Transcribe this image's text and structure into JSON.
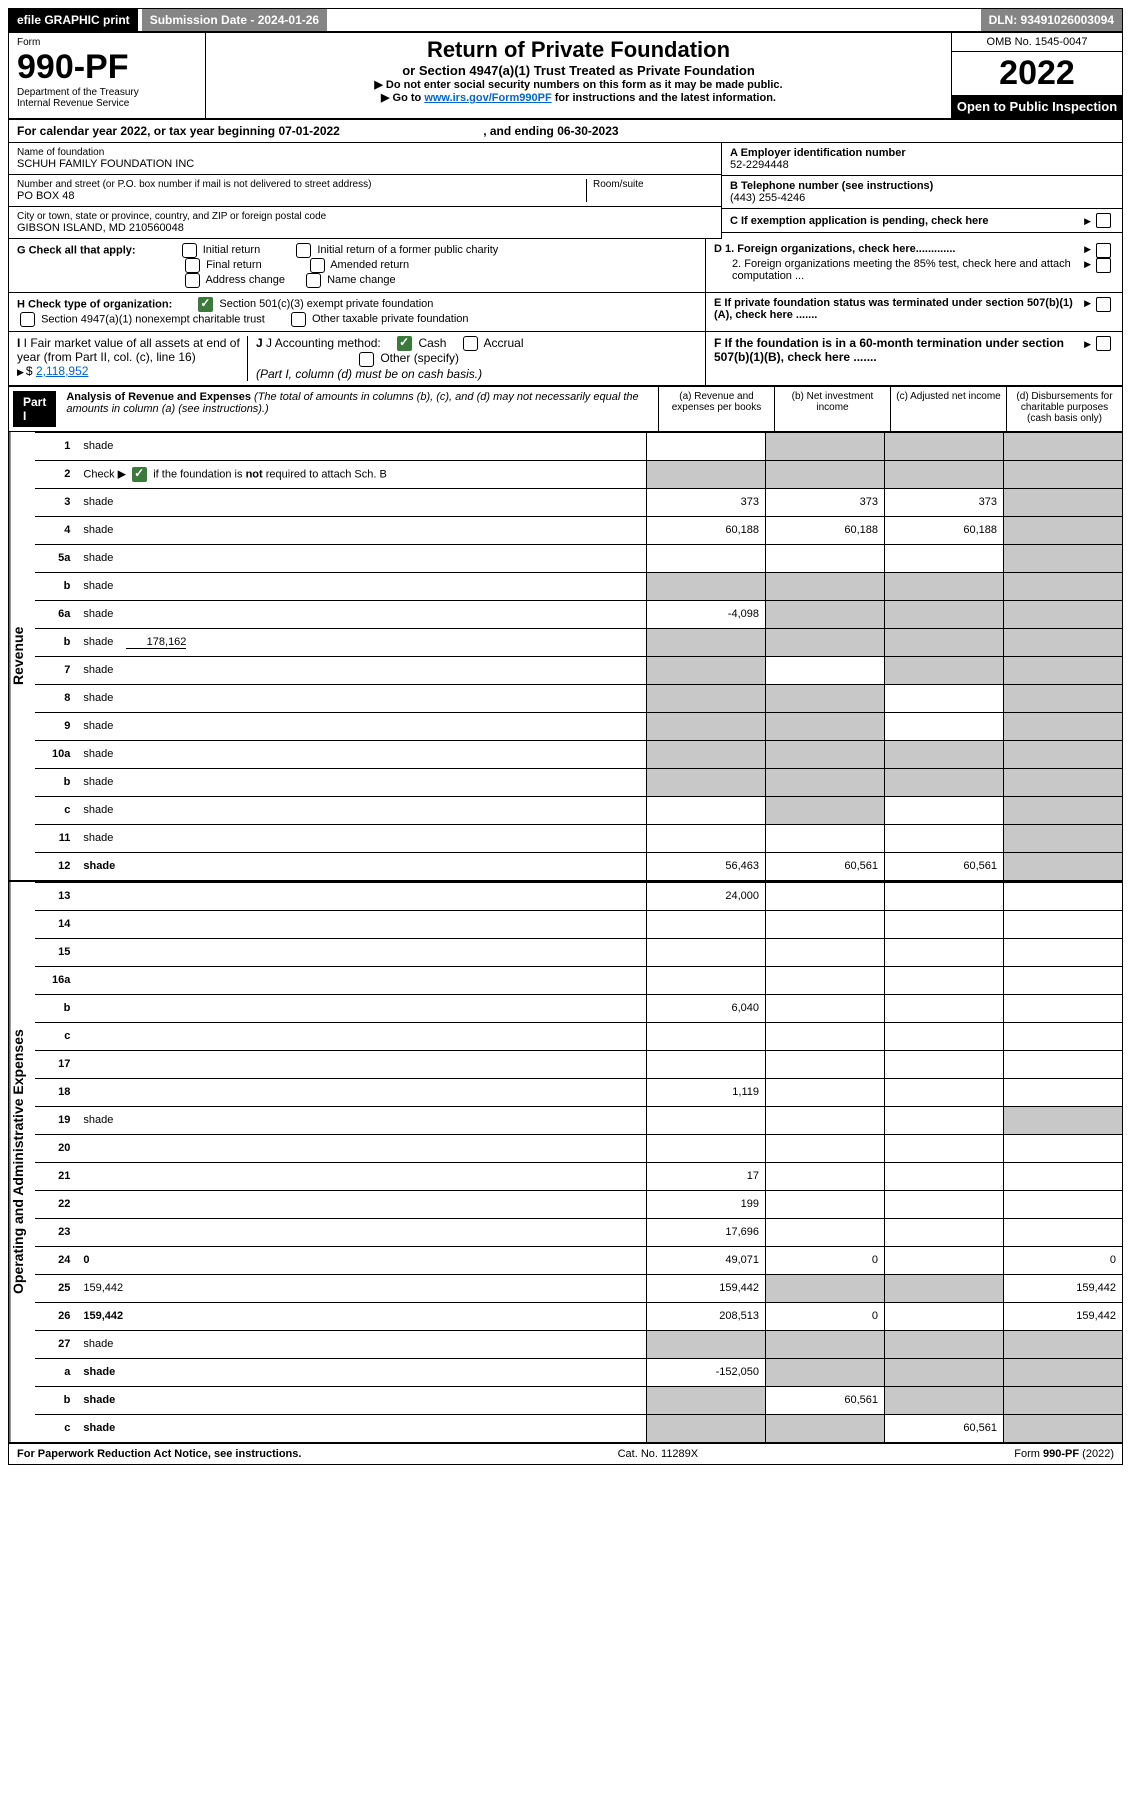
{
  "topbar": {
    "efile": "efile GRAPHIC print",
    "submission": "Submission Date - 2024-01-26",
    "dln": "DLN: 93491026003094"
  },
  "header": {
    "form_label": "Form",
    "form_number": "990-PF",
    "dept": "Department of the Treasury",
    "irs": "Internal Revenue Service",
    "title": "Return of Private Foundation",
    "subtitle": "or Section 4947(a)(1) Trust Treated as Private Foundation",
    "instr1": "▶ Do not enter social security numbers on this form as it may be made public.",
    "instr2_pre": "▶ Go to ",
    "instr2_link": "www.irs.gov/Form990PF",
    "instr2_post": " for instructions and the latest information.",
    "omb": "OMB No. 1545-0047",
    "year": "2022",
    "inspection": "Open to Public Inspection"
  },
  "calendar": {
    "text_pre": "For calendar year 2022, or tax year beginning ",
    "begin": "07-01-2022",
    "text_mid": " , and ending ",
    "end": "06-30-2023"
  },
  "foundation": {
    "name_label": "Name of foundation",
    "name": "SCHUH FAMILY FOUNDATION INC",
    "address_label": "Number and street (or P.O. box number if mail is not delivered to street address)",
    "address": "PO BOX 48",
    "room_label": "Room/suite",
    "city_label": "City or town, state or province, country, and ZIP or foreign postal code",
    "city": "GIBSON ISLAND, MD  210560048",
    "ein_label": "A Employer identification number",
    "ein": "52-2294448",
    "phone_label": "B Telephone number (see instructions)",
    "phone": "(443) 255-4246",
    "c_label": "C If exemption application is pending, check here",
    "d1_label": "D 1. Foreign organizations, check here.............",
    "d2_label": "2. Foreign organizations meeting the 85% test, check here and attach computation ...",
    "e_label": "E  If private foundation status was terminated under section 507(b)(1)(A), check here .......",
    "f_label": "F  If the foundation is in a 60-month termination under section 507(b)(1)(B), check here .......",
    "g_label": "G Check all that apply:",
    "g_initial": "Initial return",
    "g_initial_former": "Initial return of a former public charity",
    "g_final": "Final return",
    "g_amended": "Amended return",
    "g_address": "Address change",
    "g_name": "Name change",
    "h_label": "H Check type of organization:",
    "h_501c3": "Section 501(c)(3) exempt private foundation",
    "h_4947": "Section 4947(a)(1) nonexempt charitable trust",
    "h_other": "Other taxable private foundation",
    "i_label": "I Fair market value of all assets at end of year (from Part II, col. (c), line 16)",
    "i_value": "2,118,952",
    "j_label": "J Accounting method:",
    "j_cash": "Cash",
    "j_accrual": "Accrual",
    "j_other": "Other (specify)",
    "j_note": "(Part I, column (d) must be on cash basis.)"
  },
  "part1": {
    "header": "Part I",
    "title": "Analysis of Revenue and Expenses",
    "title_note": "(The total of amounts in columns (b), (c), and (d) may not necessarily equal the amounts in column (a) (see instructions).)",
    "col_a": "(a) Revenue and expenses per books",
    "col_b": "(b) Net investment income",
    "col_c": "(c) Adjusted net income",
    "col_d": "(d) Disbursements for charitable purposes (cash basis only)",
    "revenue_label": "Revenue",
    "expenses_label": "Operating and Administrative Expenses"
  },
  "rows": [
    {
      "n": "1",
      "d": "shade",
      "a": "",
      "b": "shade",
      "c": "shade"
    },
    {
      "n": "2",
      "d": "shade",
      "a": "shade",
      "b": "shade",
      "c": "shade",
      "check": true
    },
    {
      "n": "3",
      "d": "shade",
      "a": "373",
      "b": "373",
      "c": "373"
    },
    {
      "n": "4",
      "d": "shade",
      "a": "60,188",
      "b": "60,188",
      "c": "60,188"
    },
    {
      "n": "5a",
      "d": "shade",
      "a": "",
      "b": "",
      "c": ""
    },
    {
      "n": "b",
      "d": "shade",
      "a": "shade",
      "b": "shade",
      "c": "shade"
    },
    {
      "n": "6a",
      "d": "shade",
      "a": "-4,098",
      "b": "shade",
      "c": "shade"
    },
    {
      "n": "b",
      "d": "shade",
      "extra": "178,162",
      "a": "shade",
      "b": "shade",
      "c": "shade"
    },
    {
      "n": "7",
      "d": "shade",
      "a": "shade",
      "b": "",
      "c": "shade"
    },
    {
      "n": "8",
      "d": "shade",
      "a": "shade",
      "b": "shade",
      "c": ""
    },
    {
      "n": "9",
      "d": "shade",
      "a": "shade",
      "b": "shade",
      "c": ""
    },
    {
      "n": "10a",
      "d": "shade",
      "a": "shade",
      "b": "shade",
      "c": "shade"
    },
    {
      "n": "b",
      "d": "shade",
      "a": "shade",
      "b": "shade",
      "c": "shade"
    },
    {
      "n": "c",
      "d": "shade",
      "a": "",
      "b": "shade",
      "c": ""
    },
    {
      "n": "11",
      "d": "shade",
      "a": "",
      "b": "",
      "c": ""
    },
    {
      "n": "12",
      "d": "shade",
      "a": "56,463",
      "b": "60,561",
      "c": "60,561",
      "bold": true
    }
  ],
  "exp_rows": [
    {
      "n": "13",
      "d": "",
      "a": "24,000",
      "b": "",
      "c": ""
    },
    {
      "n": "14",
      "d": "",
      "a": "",
      "b": "",
      "c": ""
    },
    {
      "n": "15",
      "d": "",
      "a": "",
      "b": "",
      "c": ""
    },
    {
      "n": "16a",
      "d": "",
      "a": "",
      "b": "",
      "c": ""
    },
    {
      "n": "b",
      "d": "",
      "a": "6,040",
      "b": "",
      "c": ""
    },
    {
      "n": "c",
      "d": "",
      "a": "",
      "b": "",
      "c": ""
    },
    {
      "n": "17",
      "d": "",
      "a": "",
      "b": "",
      "c": ""
    },
    {
      "n": "18",
      "d": "",
      "a": "1,119",
      "b": "",
      "c": ""
    },
    {
      "n": "19",
      "d": "shade",
      "a": "",
      "b": "",
      "c": ""
    },
    {
      "n": "20",
      "d": "",
      "a": "",
      "b": "",
      "c": ""
    },
    {
      "n": "21",
      "d": "",
      "a": "17",
      "b": "",
      "c": ""
    },
    {
      "n": "22",
      "d": "",
      "a": "199",
      "b": "",
      "c": ""
    },
    {
      "n": "23",
      "d": "",
      "a": "17,696",
      "b": "",
      "c": ""
    },
    {
      "n": "24",
      "d": "0",
      "a": "49,071",
      "b": "0",
      "c": "",
      "bold": true
    },
    {
      "n": "25",
      "d": "159,442",
      "a": "159,442",
      "b": "shade",
      "c": "shade"
    },
    {
      "n": "26",
      "d": "159,442",
      "a": "208,513",
      "b": "0",
      "c": "",
      "bold": true
    },
    {
      "n": "27",
      "d": "shade",
      "a": "shade",
      "b": "shade",
      "c": "shade"
    },
    {
      "n": "a",
      "d": "shade",
      "a": "-152,050",
      "b": "shade",
      "c": "shade",
      "bold": true
    },
    {
      "n": "b",
      "d": "shade",
      "a": "shade",
      "b": "60,561",
      "c": "shade",
      "bold": true
    },
    {
      "n": "c",
      "d": "shade",
      "a": "shade",
      "b": "shade",
      "c": "60,561",
      "bold": true
    }
  ],
  "footer": {
    "left": "For Paperwork Reduction Act Notice, see instructions.",
    "center": "Cat. No. 11289X",
    "right": "Form 990-PF (2022)"
  }
}
